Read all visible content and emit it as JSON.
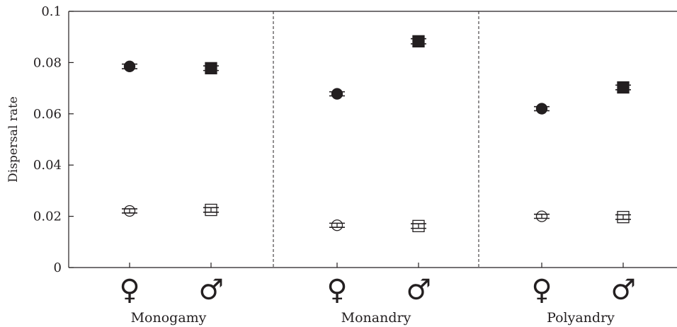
{
  "chart_data": {
    "type": "scatter",
    "title": "",
    "xlabel": "",
    "ylabel": "Dispersal rate",
    "ylim": [
      0,
      0.1
    ],
    "yticks": [
      "0",
      "0.02",
      "0.04",
      "0.06",
      "0.08",
      "0.1"
    ],
    "grid": false,
    "legend": "none",
    "groups": [
      "Monogamy",
      "Monandry",
      "Polyandry"
    ],
    "sex_labels": [
      "♀",
      "♂"
    ],
    "series": [
      {
        "marker": "filled-circle",
        "sex": "female",
        "values": [
          0.0785,
          0.0678,
          0.062
        ],
        "errors": [
          0.0009,
          0.0008,
          0.0008
        ]
      },
      {
        "marker": "filled-square",
        "sex": "male",
        "values": [
          0.0778,
          0.0883,
          0.0703
        ],
        "errors": [
          0.0009,
          0.001,
          0.0009
        ]
      },
      {
        "marker": "open-circle",
        "sex": "female",
        "values": [
          0.0221,
          0.0165,
          0.02
        ],
        "errors": [
          0.0008,
          0.0008,
          0.0008
        ]
      },
      {
        "marker": "open-square",
        "sex": "male",
        "values": [
          0.0225,
          0.0162,
          0.0197
        ],
        "errors": [
          0.0009,
          0.0009,
          0.0009
        ]
      }
    ]
  }
}
